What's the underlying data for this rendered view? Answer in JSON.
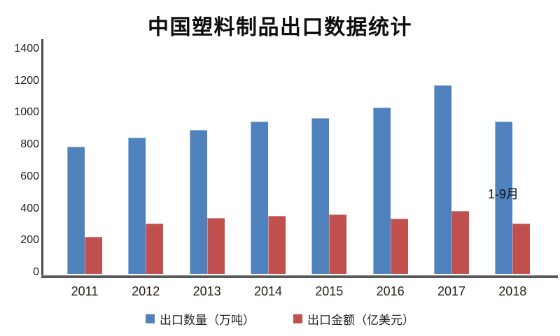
{
  "chart_data": {
    "type": "bar",
    "title": "中国塑料制品出口数据统计",
    "categories": [
      "2011",
      "2012",
      "2013",
      "2014",
      "2015",
      "2016",
      "2017",
      "2018"
    ],
    "series": [
      {
        "name": "出口数量（万吨）",
        "color": "#4F81BD",
        "values": [
          795,
          855,
          900,
          955,
          975,
          1040,
          1180,
          955
        ]
      },
      {
        "name": "出口金额（亿美元）",
        "color": "#C0504D",
        "values": [
          230,
          315,
          350,
          365,
          370,
          345,
          395,
          315
        ]
      }
    ],
    "y_ticks": [
      0,
      200,
      400,
      600,
      800,
      1000,
      1200,
      1400
    ],
    "ylim": [
      0,
      1400
    ],
    "annotation": "1-9月",
    "annotation_target": "2018",
    "legend_position": "bottom",
    "grid": false,
    "axis_color": "#4d4d4d",
    "background_color": "#ffffff"
  }
}
